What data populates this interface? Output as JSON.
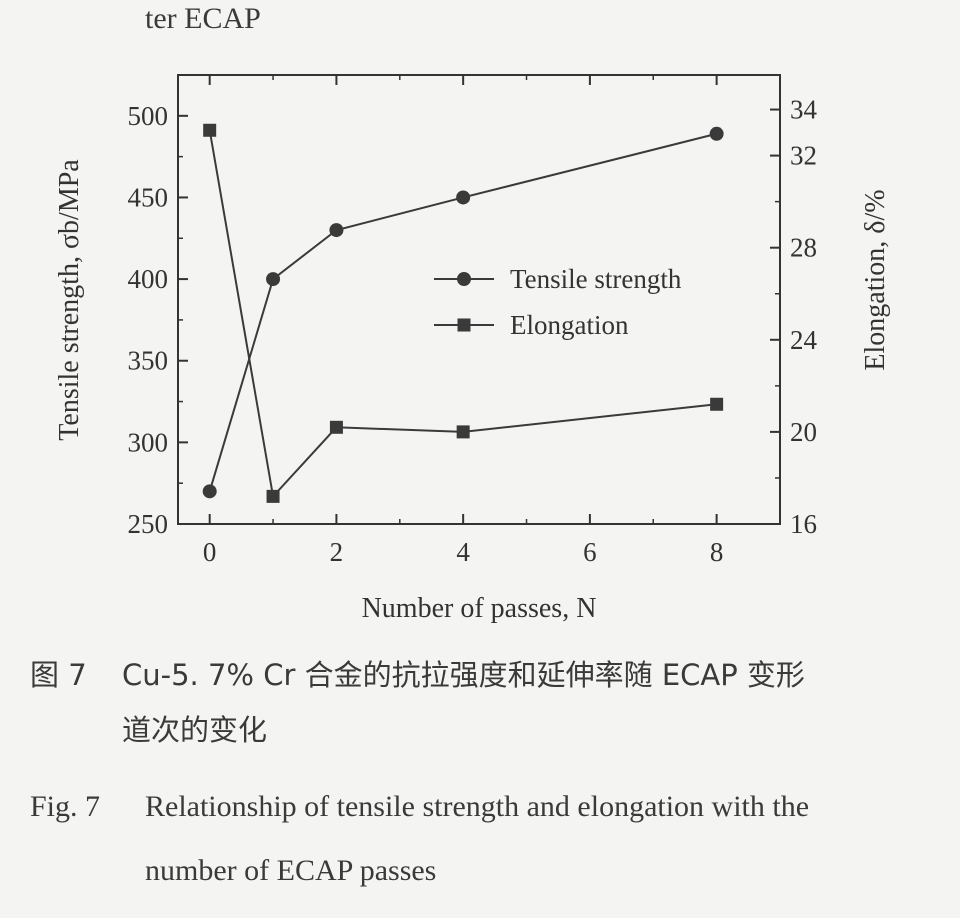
{
  "page": {
    "top_fragment": "ter ECAP",
    "caption_cn_num": "图 7",
    "caption_cn_line1": "Cu-5. 7% Cr 合金的抗拉强度和延伸率随 ECAP 变形",
    "caption_cn_line2": "道次的变化",
    "caption_en_num": "Fig. 7",
    "caption_en_line1": "Relationship of tensile strength and elongation with the",
    "caption_en_line2": "number of ECAP passes"
  },
  "chart_data": {
    "type": "line",
    "title": "",
    "xlabel": "Number of passes, N",
    "ylabel": "Tensile strength, σb/MPa",
    "y2label": "Elongation, δ/%",
    "xlim": [
      -0.5,
      9
    ],
    "ylim": [
      250,
      525
    ],
    "y2lim": [
      16,
      35.5
    ],
    "x_ticks": [
      0,
      2,
      4,
      6,
      8
    ],
    "y_ticks": [
      250,
      300,
      350,
      400,
      450,
      500
    ],
    "y2_ticks": [
      16,
      20,
      24,
      28,
      32,
      34
    ],
    "legend_position": "center-right",
    "series": [
      {
        "name": "Tensile strength",
        "axis": "left",
        "marker": "circle",
        "x": [
          0,
          1,
          2,
          4,
          8
        ],
        "values": [
          270,
          400,
          430,
          450,
          489
        ]
      },
      {
        "name": "Elongation",
        "axis": "right",
        "marker": "square",
        "x": [
          0,
          1,
          2,
          4,
          8
        ],
        "values": [
          33.1,
          17.2,
          20.2,
          20.0,
          21.2
        ]
      }
    ],
    "colors": {
      "line": "#3a3a3a",
      "marker": "#3a3a3a",
      "axis": "#333333"
    }
  }
}
